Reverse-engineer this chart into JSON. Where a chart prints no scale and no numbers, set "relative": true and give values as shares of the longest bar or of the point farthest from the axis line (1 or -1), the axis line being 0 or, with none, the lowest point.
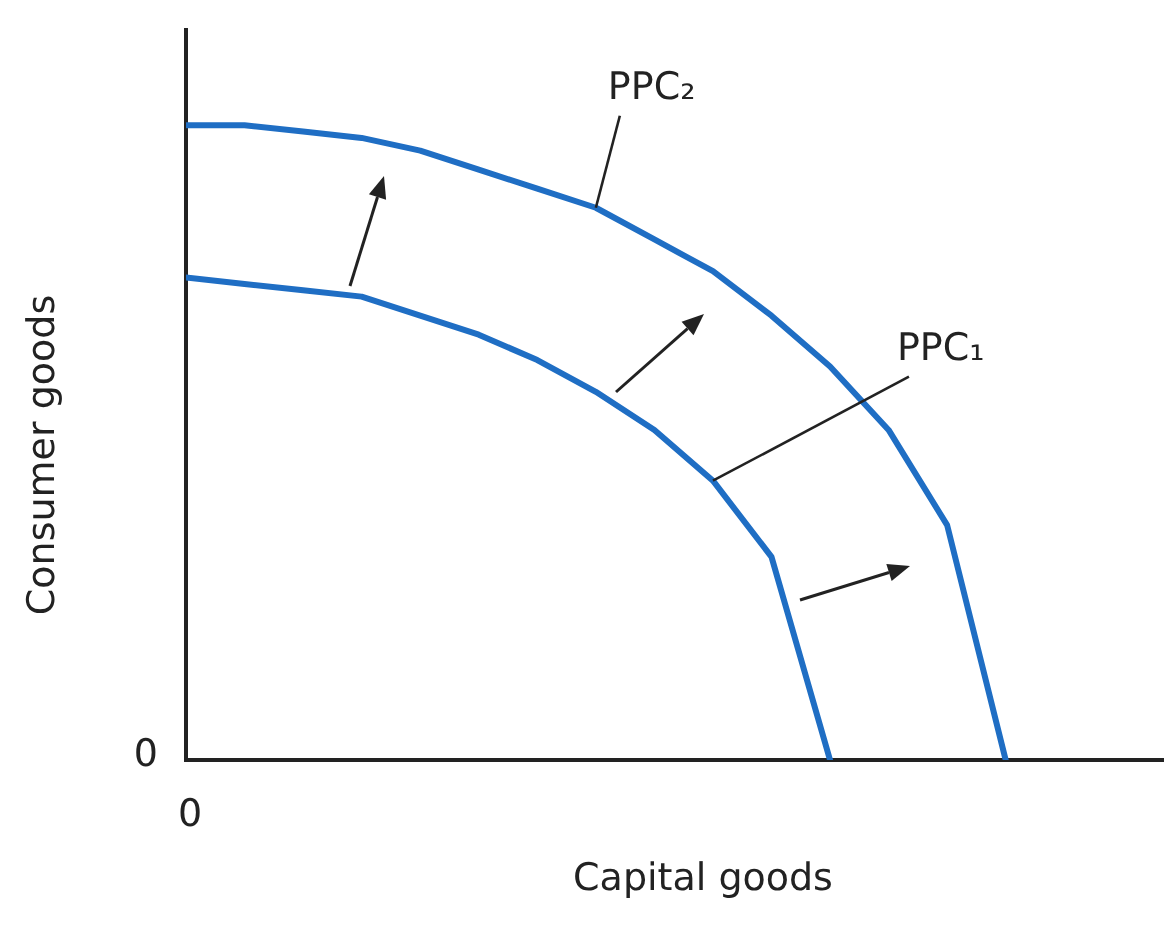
{
  "chart_data": {
    "type": "line",
    "relative": true,
    "xlabel": "Capital goods",
    "ylabel": "Consumer goods",
    "marker": "none",
    "legend": false,
    "grid": false,
    "categories": [
      null,
      null,
      null,
      null,
      null,
      null,
      null,
      null,
      null,
      null,
      null,
      null,
      null,
      null,
      null,
      null,
      null
    ],
    "series": [
      {
        "name": "PPC₁",
        "color": "#1f6ec4",
        "values": [
          0.76,
          0.75,
          0.74,
          0.73,
          0.7,
          0.67,
          0.63,
          0.58,
          0.52,
          0.44,
          0.32,
          0,
          null,
          null,
          null,
          null,
          null
        ]
      },
      {
        "name": "PPC₂",
        "color": "#1f6ec4",
        "values": [
          1,
          1,
          0.99,
          0.98,
          0.96,
          0.93,
          0.9,
          0.87,
          0.82,
          0.77,
          0.7,
          0.62,
          0.52,
          0.37,
          0,
          null,
          null
        ]
      }
    ],
    "annotations": [
      "0",
      "0"
    ]
  }
}
